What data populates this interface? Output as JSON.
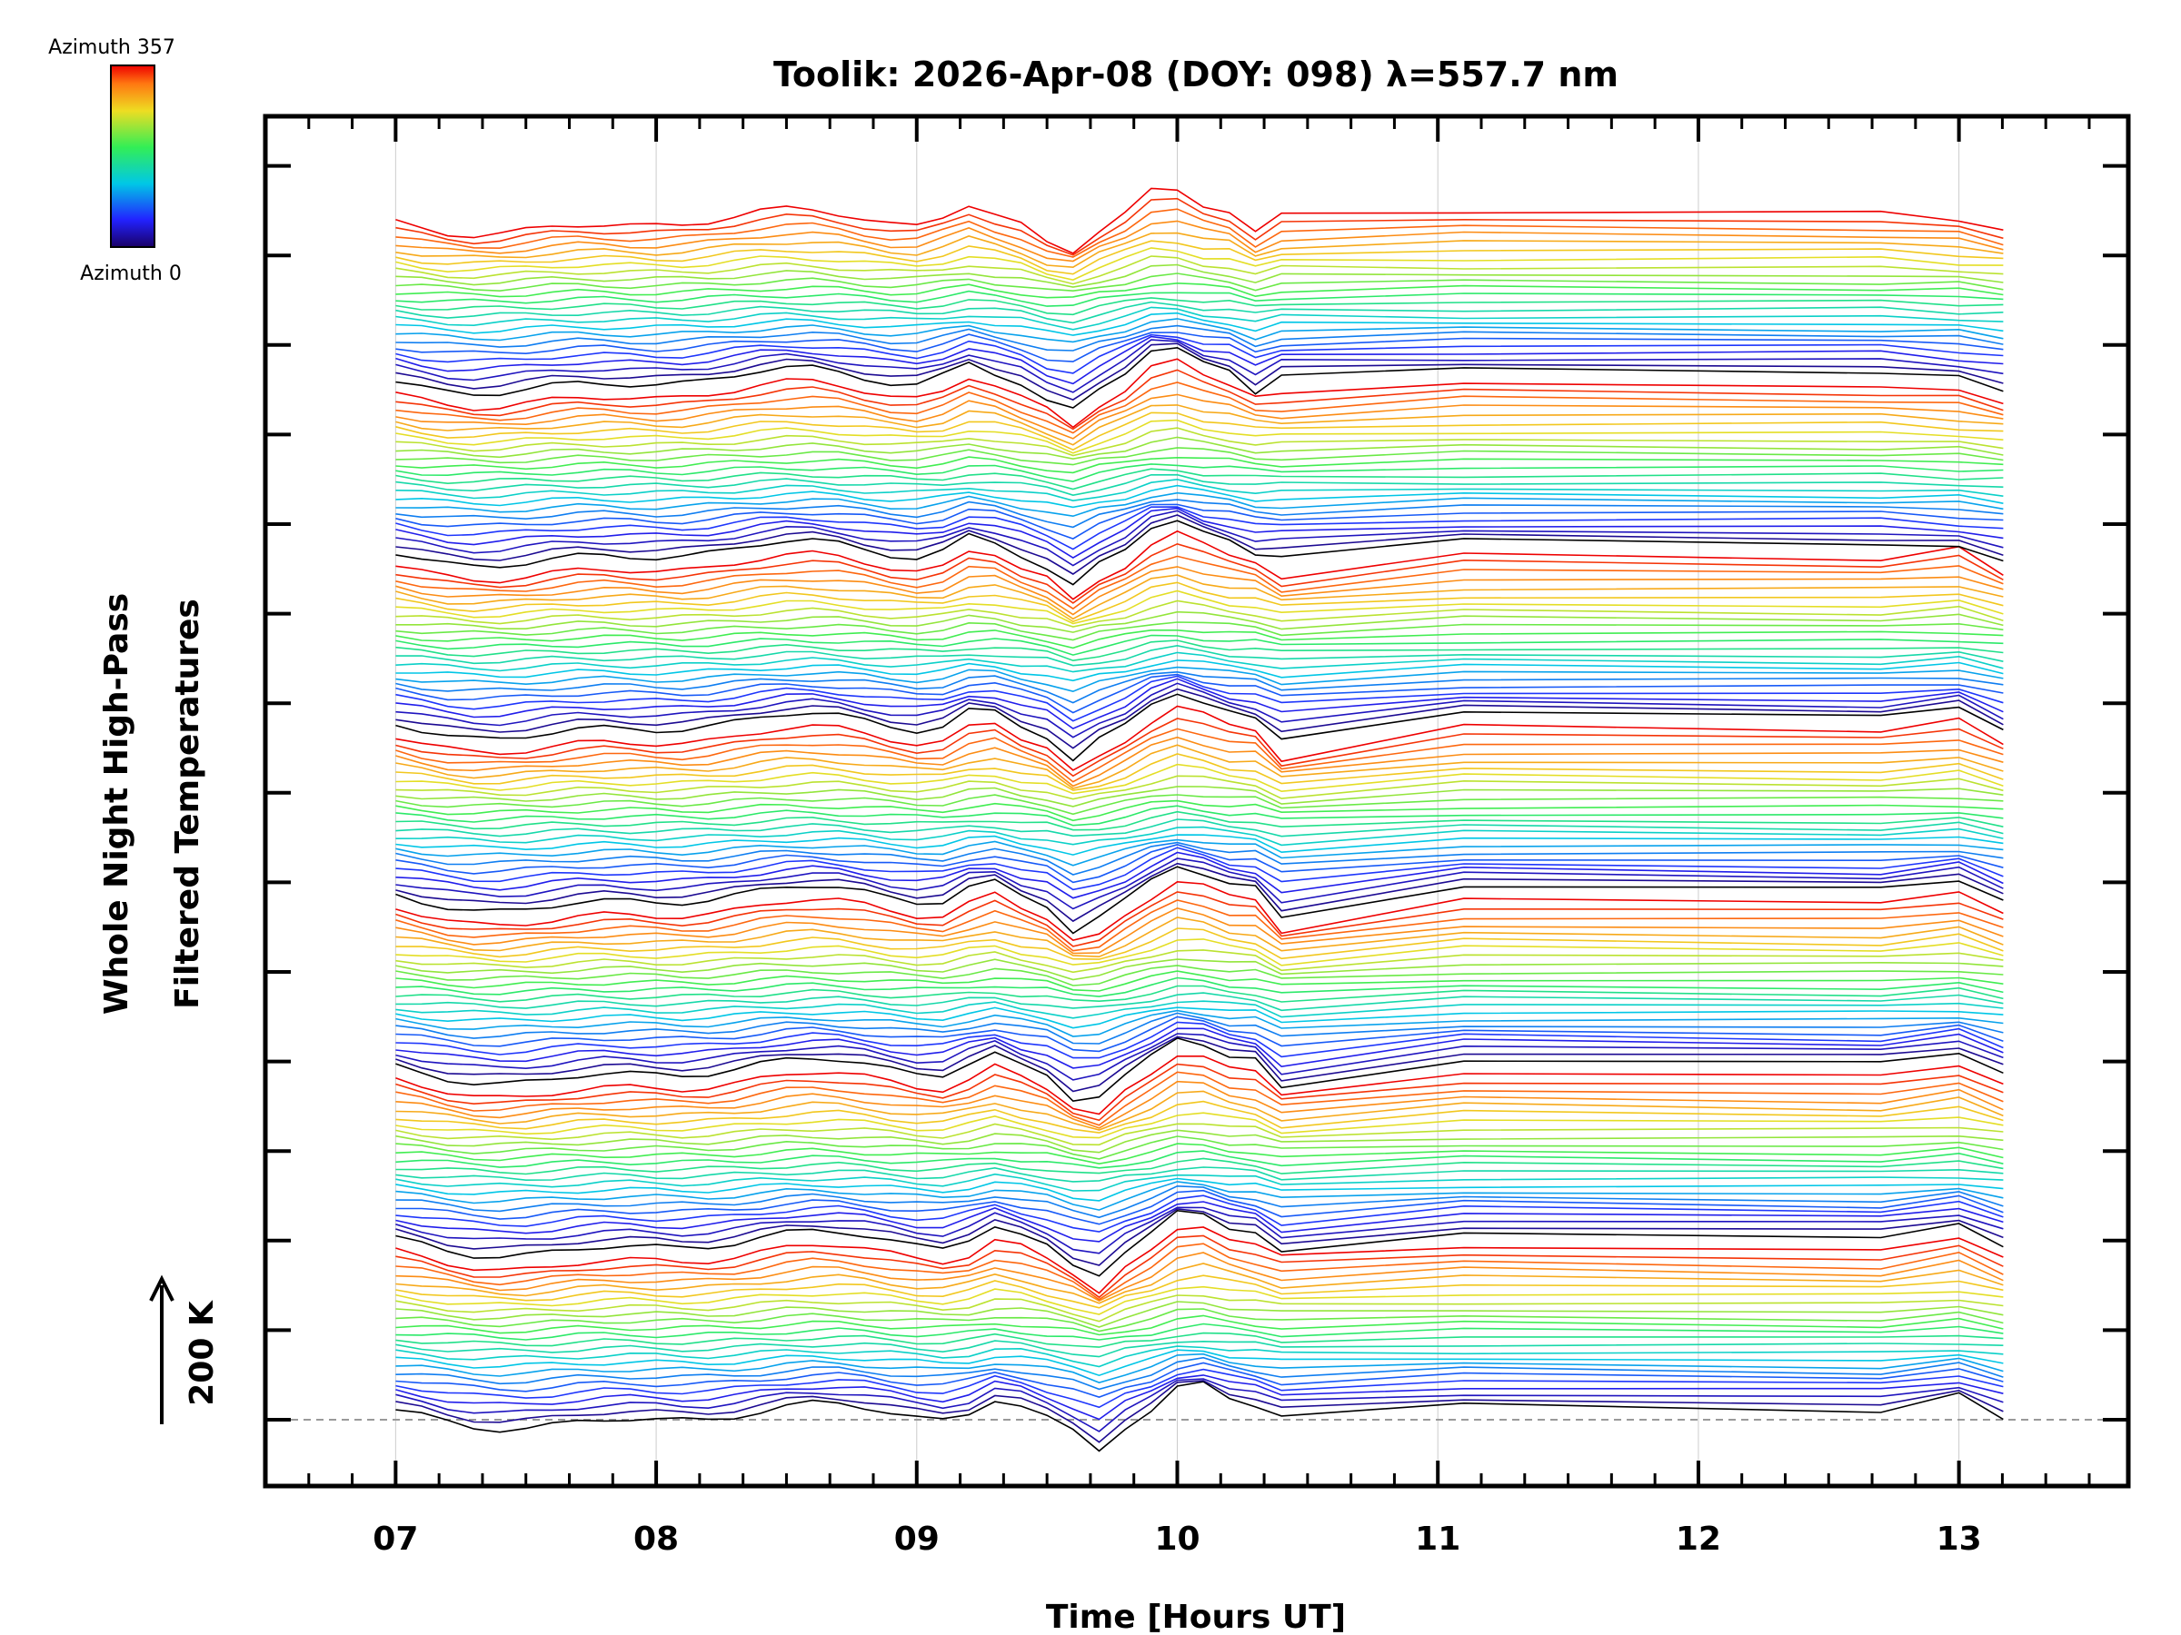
{
  "chart_data": {
    "type": "line",
    "title": "Toolik: 2026-Apr-08 (DOY: 098) λ=557.7 nm",
    "xlabel": "Time [Hours UT]",
    "ylabel_line1": "Whole Night High-Pass",
    "ylabel_line2": "Filtered Temperatures",
    "xlim": [
      6.5,
      13.65
    ],
    "x_ticks": [
      7,
      8,
      9,
      10,
      11,
      12,
      13
    ],
    "x_tick_labels": [
      "07",
      "08",
      "09",
      "10",
      "11",
      "12",
      "13"
    ],
    "x_range_data": [
      7.0,
      13.17
    ],
    "scale_bar_label": "200 K",
    "colorbar": {
      "top_label": "Azimuth 357",
      "bottom_label": "Azimuth 0",
      "azimuth_min": 0,
      "azimuth_max": 357
    },
    "zenith_groups": 7,
    "series_per_group": 24,
    "series_description": "Stacked filtered temperature traces, one per azimuth, grouped in 7 zenith rings; each line colored by azimuth (0 = black/blue, 357 = red)",
    "colors": {
      "background": "#ffffff",
      "axes": "#000000",
      "grid": "#cccccc",
      "baseline": "#999999"
    }
  }
}
